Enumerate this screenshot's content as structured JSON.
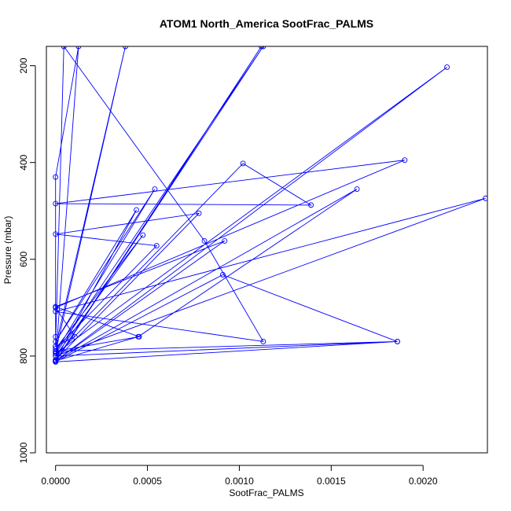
{
  "chart_data": {
    "type": "line",
    "title": "ATOM1 North_America SootFrac_PALMS",
    "xlabel": "SootFrac_PALMS",
    "ylabel": "Pressure (mbar)",
    "xlim": [
      -5e-05,
      0.00235
    ],
    "ylim": [
      1000,
      160
    ],
    "y_axis_reversed": true,
    "x_ticks": [
      0.0,
      0.0005,
      0.001,
      0.0015,
      0.002
    ],
    "x_tick_labels": [
      "0.0000",
      "0.0005",
      "0.0010",
      "0.0015",
      "0.0020"
    ],
    "y_ticks": [
      200,
      400,
      600,
      800,
      1000
    ],
    "y_tick_labels": [
      "200",
      "400",
      "600",
      "800",
      "1000"
    ],
    "grid": false,
    "color": "#0000ff",
    "series": [
      {
        "x": [
          0.0,
          0.000125,
          0.0,
          0.0,
          0.0,
          0.00038,
          0.0,
          0.00054,
          0.0,
          0.00044,
          0.0,
          0.00078,
          0.0,
          0.00055,
          0.0,
          0.000475,
          0.0,
          0.00102,
          0.00139,
          0.0,
          0.0019,
          0.0,
          0.000105,
          0.0,
          4.5e-05,
          0.00081,
          0.00113,
          0.0,
          0.00234,
          0.0,
          0.00186,
          0.0,
          0.00091,
          0.00186,
          0.0,
          0.000455,
          0.0,
          0.00092,
          0.0,
          0.00164,
          0.00045,
          0.0,
          0.00213,
          0.0,
          0.00113,
          0.0,
          0.00112,
          0.0
        ],
        "y": [
          810,
          160,
          430,
          760,
          780,
          160,
          792,
          455,
          770,
          498,
          808,
          505,
          548,
          572,
          785,
          550,
          800,
          402,
          488,
          485,
          395,
          700,
          760,
          780,
          160,
          562,
          770,
          708,
          474,
          800,
          770,
          812,
          632,
          770,
          790,
          760,
          698,
          562,
          810,
          455,
          760,
          810,
          203,
          795,
          160,
          810,
          160,
          812
        ]
      }
    ]
  }
}
